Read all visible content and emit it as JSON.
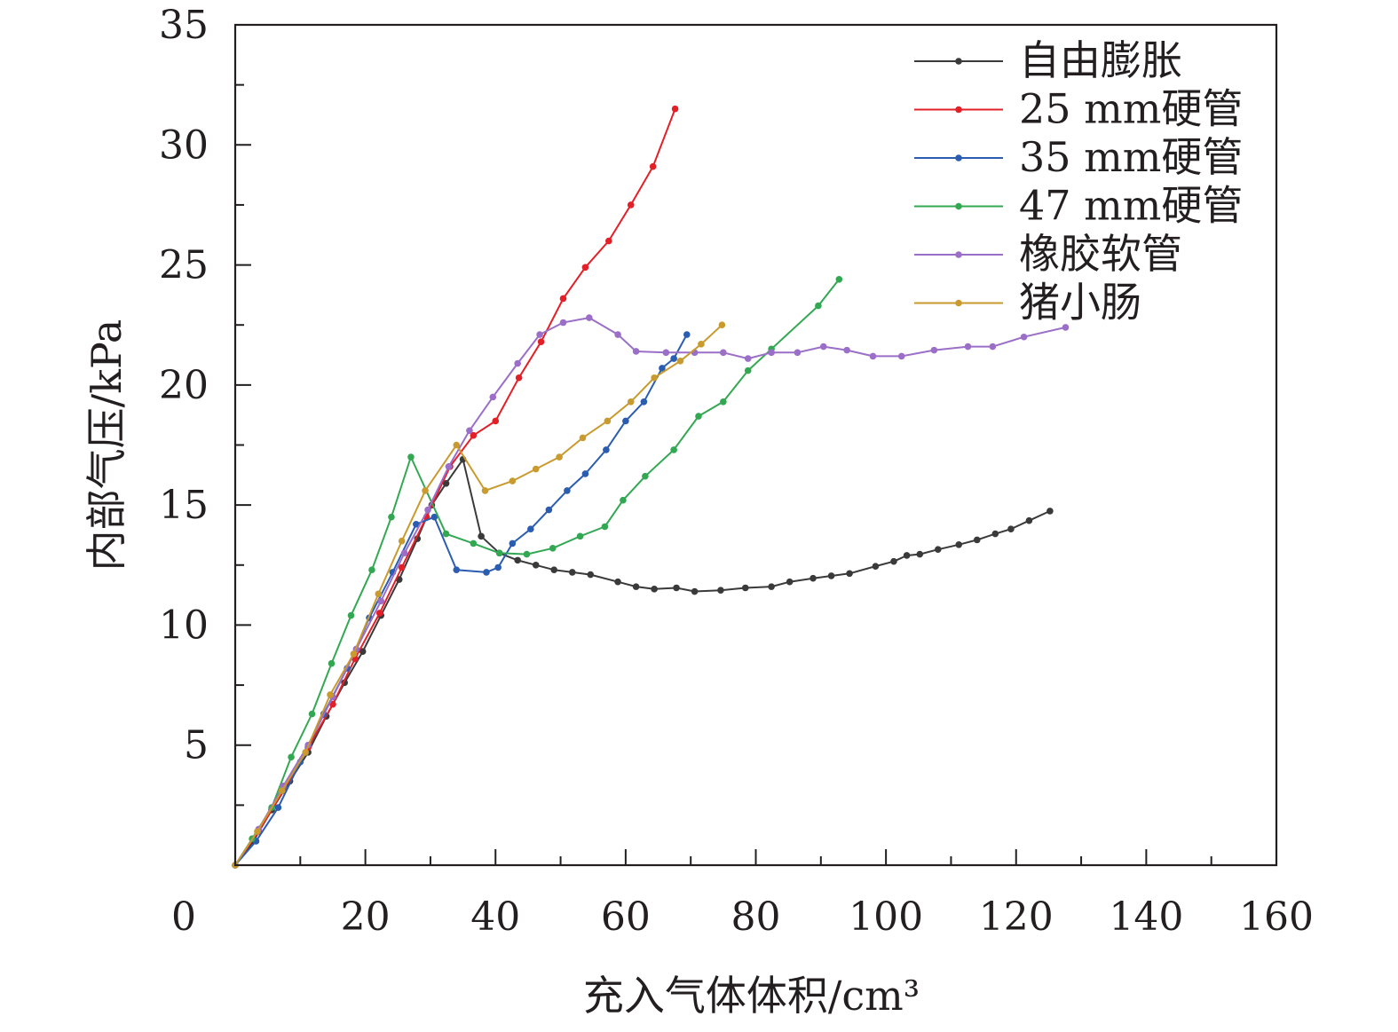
{
  "chart_data": {
    "type": "line",
    "title": "",
    "xlabel": "充入气体体积/cm³",
    "ylabel": "内部气压/kPa",
    "xlim": [
      0,
      160
    ],
    "ylim": [
      0,
      35
    ],
    "x_ticks": [
      0,
      20,
      40,
      60,
      80,
      100,
      120,
      140,
      160
    ],
    "y_ticks": [
      5,
      10,
      15,
      20,
      25,
      30,
      35
    ],
    "x_tick_labels": [
      "0",
      "20",
      "40",
      "60",
      "80",
      "100",
      "120",
      "140",
      "160"
    ],
    "y_tick_labels": [
      "5",
      "10",
      "15",
      "20",
      "25",
      "30",
      "35"
    ],
    "grid": false,
    "legend_position": "top-right",
    "series": [
      {
        "name": "自由膨胀",
        "color": "#3a3a3a",
        "points": [
          [
            0,
            0
          ],
          [
            2.8,
            1.0
          ],
          [
            5.6,
            2.3
          ],
          [
            8.4,
            3.5
          ],
          [
            11.2,
            4.7
          ],
          [
            14,
            6.2
          ],
          [
            16.8,
            7.6
          ],
          [
            19.6,
            8.9
          ],
          [
            22.4,
            10.4
          ],
          [
            25.2,
            11.9
          ],
          [
            28,
            13.6
          ],
          [
            30.2,
            15.0
          ],
          [
            32.4,
            15.9
          ],
          [
            35,
            16.9
          ],
          [
            37.8,
            13.7
          ],
          [
            40.6,
            13.0
          ],
          [
            43.4,
            12.7
          ],
          [
            46.2,
            12.5
          ],
          [
            49,
            12.3
          ],
          [
            51.8,
            12.2
          ],
          [
            54.6,
            12.1
          ],
          [
            58.8,
            11.8
          ],
          [
            61.6,
            11.6
          ],
          [
            64.4,
            11.5
          ],
          [
            67.8,
            11.55
          ],
          [
            70.6,
            11.4
          ],
          [
            74.6,
            11.45
          ],
          [
            78.4,
            11.55
          ],
          [
            82.4,
            11.6
          ],
          [
            85.2,
            11.8
          ],
          [
            88.8,
            11.95
          ],
          [
            91.6,
            12.05
          ],
          [
            94.4,
            12.15
          ],
          [
            98.4,
            12.45
          ],
          [
            101.2,
            12.65
          ],
          [
            103.2,
            12.9
          ],
          [
            105.2,
            12.95
          ],
          [
            108,
            13.15
          ],
          [
            111.2,
            13.35
          ],
          [
            114,
            13.55
          ],
          [
            116.8,
            13.8
          ],
          [
            119.2,
            14.0
          ],
          [
            122,
            14.35
          ],
          [
            125.2,
            14.75
          ]
        ]
      },
      {
        "name": "25 mm硬管",
        "color": "#e32027",
        "points": [
          [
            0,
            0
          ],
          [
            3.6,
            1.4
          ],
          [
            7.4,
            3.1
          ],
          [
            11.2,
            4.9
          ],
          [
            15,
            6.7
          ],
          [
            18.4,
            8.6
          ],
          [
            22.2,
            10.5
          ],
          [
            25.6,
            12.4
          ],
          [
            29.4,
            14.5
          ],
          [
            33,
            16.6
          ],
          [
            36.6,
            17.9
          ],
          [
            40,
            18.5
          ],
          [
            43.6,
            20.3
          ],
          [
            47,
            21.8
          ],
          [
            50.4,
            23.6
          ],
          [
            53.8,
            24.9
          ],
          [
            57.4,
            26.0
          ],
          [
            60.8,
            27.5
          ],
          [
            64.2,
            29.1
          ],
          [
            67.6,
            31.5
          ]
        ]
      },
      {
        "name": "35 mm硬管",
        "color": "#2a5db0",
        "points": [
          [
            0,
            0
          ],
          [
            3.2,
            1.0
          ],
          [
            6.6,
            2.4
          ],
          [
            10,
            4.3
          ],
          [
            13.6,
            6.3
          ],
          [
            17.2,
            8.2
          ],
          [
            20.6,
            10.3
          ],
          [
            24.2,
            12.2
          ],
          [
            27.8,
            14.2
          ],
          [
            30.6,
            14.5
          ],
          [
            34,
            12.3
          ],
          [
            38.6,
            12.2
          ],
          [
            40.4,
            12.4
          ],
          [
            42.6,
            13.4
          ],
          [
            45.4,
            14.0
          ],
          [
            48.2,
            14.8
          ],
          [
            51,
            15.6
          ],
          [
            53.8,
            16.3
          ],
          [
            57,
            17.3
          ],
          [
            60,
            18.5
          ],
          [
            62.8,
            19.3
          ],
          [
            65.6,
            20.7
          ],
          [
            67.4,
            21.1
          ],
          [
            69.4,
            22.1
          ]
        ]
      },
      {
        "name": "47 mm硬管",
        "color": "#33a853",
        "points": [
          [
            0,
            0
          ],
          [
            2.6,
            1.1
          ],
          [
            5.6,
            2.4
          ],
          [
            8.6,
            4.5
          ],
          [
            11.8,
            6.3
          ],
          [
            14.8,
            8.4
          ],
          [
            17.8,
            10.4
          ],
          [
            21,
            12.3
          ],
          [
            24,
            14.5
          ],
          [
            27,
            17.0
          ],
          [
            32.4,
            13.8
          ],
          [
            36.6,
            13.4
          ],
          [
            40.6,
            13.0
          ],
          [
            44.8,
            12.95
          ],
          [
            48.8,
            13.2
          ],
          [
            53,
            13.7
          ],
          [
            56.8,
            14.1
          ],
          [
            59.6,
            15.2
          ],
          [
            63,
            16.2
          ],
          [
            67.4,
            17.3
          ],
          [
            71.2,
            18.7
          ],
          [
            75,
            19.3
          ],
          [
            78.8,
            20.6
          ],
          [
            82.4,
            21.5
          ],
          [
            89.6,
            23.3
          ],
          [
            92.8,
            24.4
          ]
        ]
      },
      {
        "name": "橡胶软管",
        "color": "#9b6fc8",
        "points": [
          [
            0,
            0
          ],
          [
            3.6,
            1.5
          ],
          [
            7.4,
            3.3
          ],
          [
            11.2,
            5.0
          ],
          [
            15,
            7.0
          ],
          [
            18.6,
            9.0
          ],
          [
            22.4,
            11.0
          ],
          [
            26,
            13.0
          ],
          [
            29.6,
            14.8
          ],
          [
            32.8,
            16.6
          ],
          [
            36,
            18.1
          ],
          [
            39.6,
            19.5
          ],
          [
            43.4,
            20.9
          ],
          [
            46.8,
            22.1
          ],
          [
            50.4,
            22.6
          ],
          [
            54.4,
            22.8
          ],
          [
            58.8,
            22.1
          ],
          [
            61.6,
            21.4
          ],
          [
            66.2,
            21.35
          ],
          [
            70.6,
            21.35
          ],
          [
            75,
            21.35
          ],
          [
            78.8,
            21.1
          ],
          [
            82.4,
            21.35
          ],
          [
            86.4,
            21.35
          ],
          [
            90.4,
            21.6
          ],
          [
            94,
            21.45
          ],
          [
            98,
            21.2
          ],
          [
            102.4,
            21.2
          ],
          [
            107.4,
            21.45
          ],
          [
            112.6,
            21.6
          ],
          [
            116.4,
            21.6
          ],
          [
            121.2,
            22.0
          ],
          [
            127.6,
            22.4
          ]
        ]
      },
      {
        "name": "猪小肠",
        "color": "#c99a2e",
        "points": [
          [
            0,
            0
          ],
          [
            3.4,
            1.4
          ],
          [
            7.2,
            3.1
          ],
          [
            10.8,
            4.7
          ],
          [
            14.6,
            7.1
          ],
          [
            18.2,
            8.8
          ],
          [
            22,
            11.3
          ],
          [
            25.6,
            13.5
          ],
          [
            29.2,
            15.6
          ],
          [
            34,
            17.5
          ],
          [
            38.4,
            15.6
          ],
          [
            42.6,
            16.0
          ],
          [
            46.2,
            16.5
          ],
          [
            49.8,
            17.0
          ],
          [
            53.4,
            17.8
          ],
          [
            57.2,
            18.5
          ],
          [
            60.8,
            19.3
          ],
          [
            64.4,
            20.3
          ],
          [
            68.4,
            21.0
          ],
          [
            71.6,
            21.7
          ],
          [
            74.8,
            22.5
          ]
        ]
      }
    ]
  }
}
